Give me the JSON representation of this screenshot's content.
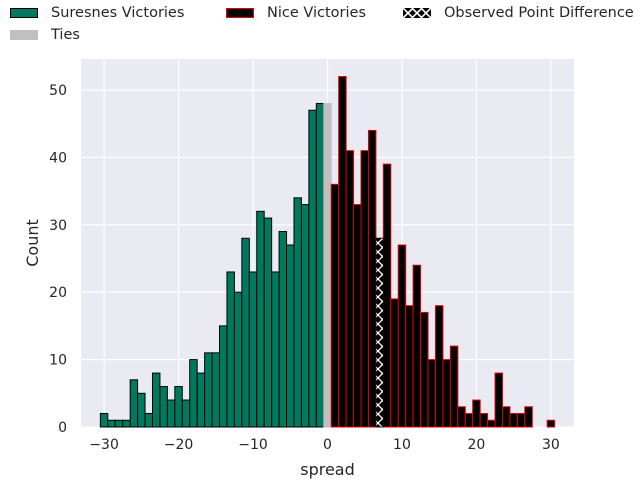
{
  "chart_data": {
    "type": "bar",
    "subtype": "histogram",
    "xlabel": "spread",
    "ylabel": "Count",
    "xlim": [
      -33.1,
      33.1
    ],
    "ylim": [
      0,
      54.6
    ],
    "xticks": [
      -30,
      -20,
      -10,
      0,
      10,
      20,
      30
    ],
    "yticks": [
      0,
      10,
      20,
      30,
      40,
      50
    ],
    "grid": true,
    "legend_position": "top",
    "bin_width": 1,
    "series": [
      {
        "name": "Suresnes Victories",
        "color": "#007a5e",
        "edge_color": "#000000",
        "x": [
          -30,
          -29,
          -28,
          -27,
          -26,
          -25,
          -24,
          -23,
          -22,
          -21,
          -20,
          -19,
          -18,
          -17,
          -16,
          -15,
          -14,
          -13,
          -12,
          -11,
          -10,
          -9,
          -8,
          -7,
          -6,
          -5,
          -4,
          -3,
          -2,
          -1
        ],
        "values": [
          2,
          1,
          1,
          1,
          7,
          5,
          2,
          8,
          6,
          4,
          6,
          4,
          10,
          8,
          11,
          11,
          15,
          23,
          20,
          28,
          23,
          32,
          31,
          23,
          29,
          27,
          34,
          33,
          47,
          48
        ]
      },
      {
        "name": "Ties",
        "color": "#c0c0c0",
        "edge_color": "#c0c0c0",
        "x": [
          0
        ],
        "values": [
          48
        ]
      },
      {
        "name": "Nice Victories",
        "color": "#000000",
        "edge_color": "#e00000",
        "x": [
          1,
          2,
          3,
          4,
          5,
          6,
          7,
          8,
          9,
          10,
          11,
          12,
          13,
          14,
          15,
          16,
          17,
          18,
          19,
          20,
          21,
          22,
          23,
          24,
          25,
          26,
          27,
          28,
          29,
          30
        ],
        "values": [
          36,
          52,
          41,
          33,
          41,
          44,
          28,
          39,
          19,
          27,
          18,
          24,
          17,
          10,
          18,
          10,
          12,
          3,
          2,
          4,
          2,
          1,
          8,
          3,
          2,
          2,
          3,
          0,
          0,
          1
        ]
      },
      {
        "name": "Observed Point Difference",
        "color": "#000000",
        "pattern": "white-cross-hatch",
        "x": [
          7
        ],
        "values": [
          28
        ]
      }
    ]
  }
}
